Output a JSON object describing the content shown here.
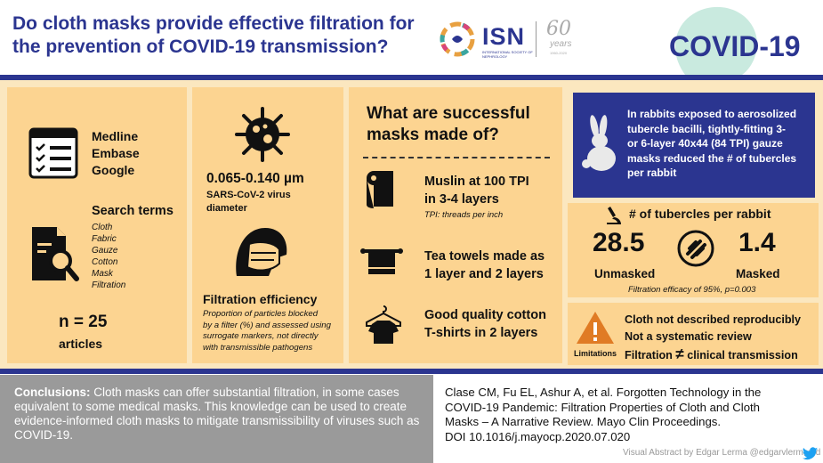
{
  "header": {
    "title_line1": "Do cloth masks provide effective filtration for",
    "title_line2": "the prevention of COVID-19 transmission?",
    "isn": "ISN",
    "isn_subtitle": "INTERNATIONAL SOCIETY OF NEPHROLOGY",
    "anniversary_number": "60",
    "anniversary_word": "years",
    "anniversary_range": "1960-2020",
    "covid_badge": "COVID-19"
  },
  "search": {
    "databases": [
      "Medline",
      "Embase",
      "Google"
    ],
    "terms_heading": "Search terms",
    "terms": [
      "Cloth",
      "Fabric",
      "Gauze",
      "Cotton",
      "Mask",
      "Filtration"
    ],
    "n_value": "n = 25",
    "n_unit": "articles"
  },
  "virus": {
    "size": "0.065-0.140 µm",
    "size_label_1": "SARS-CoV-2 virus",
    "size_label_2": "diameter",
    "filtration_heading": "Filtration efficiency",
    "filtration_desc_1": "Proportion of particles blocked",
    "filtration_desc_2": "by a filter (%) and assessed using",
    "filtration_desc_3": "surrogate markers, not directly",
    "filtration_desc_4": "with transmissible pathogens"
  },
  "masks": {
    "heading_1": "What are successful",
    "heading_2": "masks made of?",
    "item1_line1": "Muslin at 100 TPI",
    "item1_line2": "in 3-4 layers",
    "item1_note": "TPI: threads per inch",
    "item2_line1": "Tea towels made as",
    "item2_line2": "1 layer and 2 layers",
    "item3_line1": "Good quality cotton",
    "item3_line2": "T-shirts in 2 layers"
  },
  "rabbit": {
    "line1": "In rabbits exposed to aerosolized",
    "line2": "tubercle bacilli, tightly-fitting 3-",
    "line3": "or 6-layer 40x44 (84 TPI) gauze",
    "line4": "masks reduced the # of tubercles",
    "line5": "per rabbit",
    "tubercles_heading": "# of tubercles per rabbit",
    "unmasked_value": "28.5",
    "unmasked_label": "Unmasked",
    "masked_value": "1.4",
    "masked_label": "Masked",
    "efficacy_note": "Filtration efficacy of 95%, p=0.003"
  },
  "limitations": {
    "label": "Limitations",
    "item1": "Cloth not described reproducibly",
    "item2": "Not a systematic review",
    "item3_a": "Filtration",
    "item3_sym": "≠",
    "item3_b": "clinical transmission"
  },
  "footer": {
    "conclusions_label": "Conclusions:",
    "conclusions_text": " Cloth masks can offer substantial filtration, in some cases equivalent to some medical masks. This knowledge can be used to create evidence-informed cloth masks to mitigate transmissibility of viruses such as COVID-19.",
    "reference_line1": "Clase CM, Fu EL, Ashur A, et al. Forgotten Technology in the",
    "reference_line2": "COVID-19 Pandemic: Filtration Properties of Cloth and Cloth",
    "reference_line3": "Masks – A Narrative Review. Mayo Clin Proceedings.",
    "reference_line4": "DOI 10.1016/j.mayocp.2020.07.020",
    "credit": "Visual Abstract by Edgar Lerma @edgarvlermamd"
  },
  "colors": {
    "navy": "#2b3590",
    "panel": "#fcd491",
    "background": "#fbe7bf",
    "conclusion_bg": "#9a9a9a",
    "warning": "#e07b24",
    "twitter": "#1da1f2"
  },
  "icons": [
    "checklist-icon",
    "magnifier-document-icon",
    "virus-icon",
    "masked-person-icon",
    "fabric-roll-icon",
    "towel-icon",
    "tshirt-icon",
    "rabbit-icon",
    "microscope-icon",
    "no-sign-icon",
    "warning-icon",
    "twitter-icon"
  ]
}
